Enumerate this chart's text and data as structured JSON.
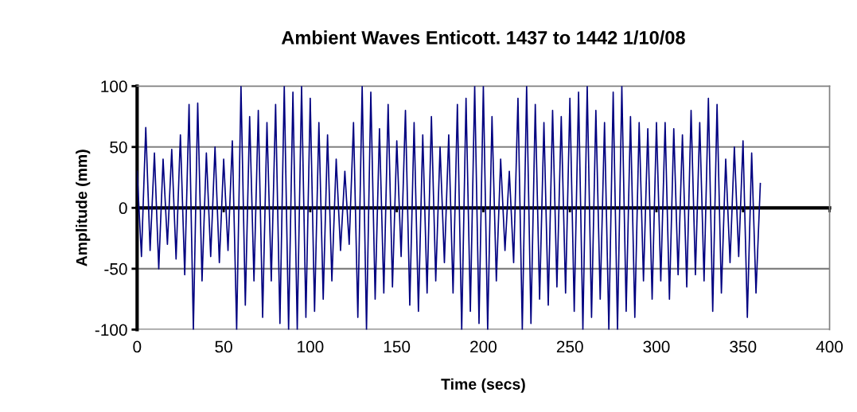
{
  "chart_data": {
    "type": "line",
    "title": "Ambient Waves Enticott. 1437 to 1442 1/10/08",
    "xlabel": "Time (secs)",
    "ylabel": "Amplitude (mm)",
    "x": [
      0,
      2.5,
      5,
      7.5,
      10,
      12.5,
      15,
      17.5,
      20,
      22.5,
      25,
      27.5,
      30,
      32.5,
      35,
      37.5,
      40,
      42.5,
      45,
      47.5,
      50,
      52.5,
      55,
      57.5,
      60,
      62.5,
      65,
      67.5,
      70,
      72.5,
      75,
      77.5,
      80,
      82.5,
      85,
      87.5,
      90,
      92.5,
      95,
      97.5,
      100,
      102.5,
      105,
      107.5,
      110,
      112.5,
      115,
      117.5,
      120,
      122.5,
      125,
      127.5,
      130,
      132.5,
      135,
      137.5,
      140,
      142.5,
      145,
      147.5,
      150,
      152.5,
      155,
      157.5,
      160,
      162.5,
      165,
      167.5,
      170,
      172.5,
      175,
      177.5,
      180,
      182.5,
      185,
      187.5,
      190,
      192.5,
      195,
      197.5,
      200,
      202.5,
      205,
      207.5,
      210,
      212.5,
      215,
      217.5,
      220,
      222.5,
      225,
      227.5,
      230,
      232.5,
      235,
      237.5,
      240,
      242.5,
      245,
      247.5,
      250,
      252.5,
      255,
      257.5,
      260,
      262.5,
      265,
      267.5,
      270,
      272.5,
      275,
      277.5,
      280,
      282.5,
      285,
      287.5,
      290,
      292.5,
      295,
      297.5,
      300,
      302.5,
      305,
      307.5,
      310,
      312.5,
      315,
      317.5,
      320,
      322.5,
      325,
      327.5,
      330,
      332.5,
      335,
      337.5,
      340,
      342.5,
      345,
      347.5,
      350,
      352.5,
      355,
      357.5,
      360
    ],
    "series": [
      {
        "color": "#000080",
        "values": [
          30,
          -40,
          66,
          -35,
          45,
          -50,
          40,
          -30,
          48,
          -42,
          60,
          -55,
          85,
          -100,
          86,
          -60,
          45,
          -40,
          50,
          -45,
          40,
          -35,
          55,
          -100,
          100,
          -80,
          75,
          -60,
          80,
          -90,
          70,
          -60,
          85,
          -95,
          100,
          -100,
          95,
          -100,
          100,
          -90,
          90,
          -85,
          70,
          -75,
          60,
          -60,
          40,
          -35,
          30,
          -30,
          70,
          -90,
          100,
          -100,
          95,
          -75,
          65,
          -70,
          85,
          -65,
          55,
          -40,
          80,
          -80,
          70,
          -85,
          60,
          -70,
          75,
          -60,
          50,
          -45,
          60,
          -70,
          85,
          -100,
          90,
          -85,
          100,
          -95,
          100,
          -100,
          75,
          -60,
          40,
          -35,
          30,
          -45,
          90,
          -100,
          100,
          -95,
          85,
          -75,
          70,
          -80,
          80,
          -65,
          75,
          -70,
          90,
          -85,
          95,
          -100,
          100,
          -90,
          80,
          -75,
          70,
          -100,
          95,
          -100,
          100,
          -85,
          75,
          -90,
          70,
          -60,
          65,
          -75,
          70,
          -60,
          70,
          -75,
          65,
          -55,
          60,
          -65,
          80,
          -55,
          70,
          -60,
          90,
          -85,
          85,
          -70,
          40,
          -45,
          50,
          -40,
          55,
          -90,
          45,
          -70,
          20
        ]
      }
    ],
    "xlim": [
      0,
      400
    ],
    "xticks": [
      0,
      50,
      100,
      150,
      200,
      250,
      300,
      350,
      400
    ],
    "ylim": [
      -100,
      100
    ],
    "yticks": [
      -100,
      -50,
      0,
      50,
      100
    ],
    "grid": "y",
    "marker": "none",
    "line_style": "solid"
  }
}
